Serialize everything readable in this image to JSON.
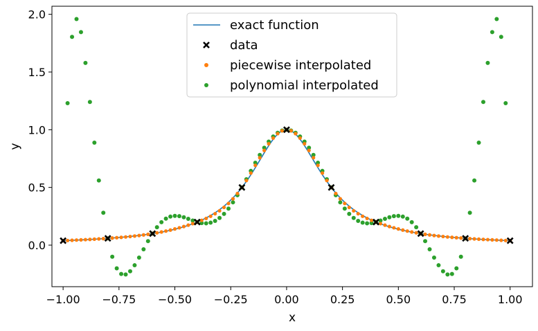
{
  "chart_data": {
    "type": "scatter",
    "xlabel": "x",
    "ylabel": "y",
    "xlim": [
      -1.05,
      1.1
    ],
    "ylim": [
      -0.36,
      2.07
    ],
    "xticks": [
      -1.0,
      -0.75,
      -0.5,
      -0.25,
      0.0,
      0.25,
      0.5,
      0.75,
      1.0
    ],
    "xtick_labels": [
      "−1.00",
      "−0.75",
      "−0.50",
      "−0.25",
      "0.00",
      "0.25",
      "0.50",
      "0.75",
      "1.00"
    ],
    "yticks": [
      0.0,
      0.5,
      1.0,
      1.5,
      2.0
    ],
    "ytick_labels": [
      "0.0",
      "0.5",
      "1.0",
      "1.5",
      "2.0"
    ],
    "grid": false,
    "legend_position": "top-center",
    "series": [
      {
        "name": "exact function",
        "kind": "line",
        "color": "#1f77b4",
        "function": "1/(1+25*x^2)",
        "domain": [
          -1.0,
          1.0
        ]
      },
      {
        "name": "data",
        "kind": "marker-x",
        "color": "#000000",
        "x": [
          -1.0,
          -0.8,
          -0.6,
          -0.4,
          -0.2,
          0.0,
          0.2,
          0.4,
          0.6,
          0.8,
          1.0
        ],
        "y": [
          0.0385,
          0.0588,
          0.1,
          0.2,
          0.5,
          1.0,
          0.5,
          0.2,
          0.1,
          0.0588,
          0.0385
        ]
      },
      {
        "name": "piecewise interpolated",
        "kind": "points",
        "color": "#ff7f0e",
        "x_range": [
          -1.0,
          1.0
        ],
        "count": 101,
        "method": "piecewise interpolation of data"
      },
      {
        "name": "polynomial interpolated",
        "kind": "points",
        "color": "#2ca02c",
        "x_range": [
          -0.98,
          0.98
        ],
        "count": 99,
        "method": "degree-10 polynomial through data",
        "y_clip": [
          -0.36,
          2.07
        ]
      }
    ]
  }
}
